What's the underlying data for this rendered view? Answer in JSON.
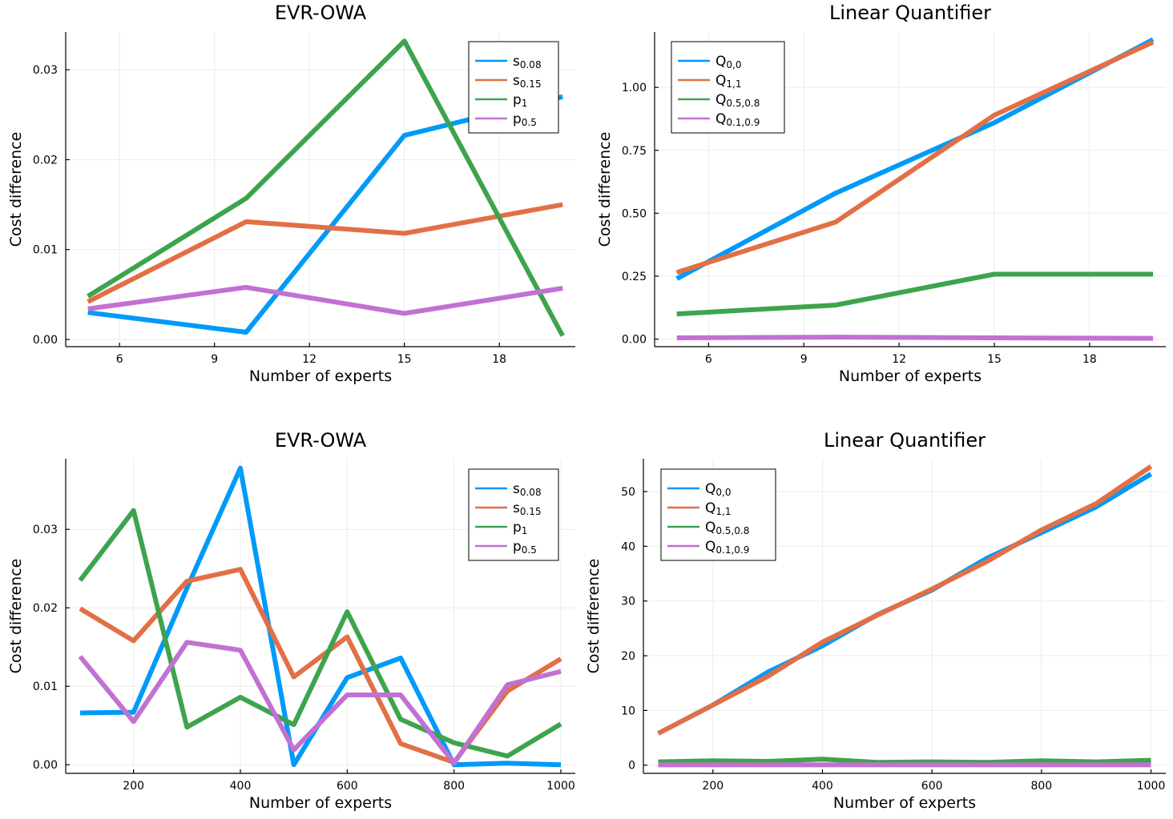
{
  "chart_data": [
    {
      "type": "line",
      "title": "EVR-OWA",
      "xlabel": "Number of experts",
      "ylabel": "Cost difference",
      "x": [
        5,
        10,
        15,
        20
      ],
      "xlim": [
        4.3,
        20.4
      ],
      "ylim": [
        -0.0008,
        0.0342
      ],
      "xticks": [
        6,
        9,
        12,
        15,
        18
      ],
      "xtick_labels": [
        "6",
        "9",
        "12",
        "15",
        "18"
      ],
      "yticks": [
        0,
        0.01,
        0.02,
        0.03
      ],
      "ytick_labels": [
        "0.00",
        "0.01",
        "0.02",
        "0.03"
      ],
      "grid": true,
      "legend_position": "top-right",
      "series": [
        {
          "name": "s0.08",
          "base": "s",
          "sub": "0.08",
          "color": "#009af9",
          "values": [
            0.003,
            0.0008,
            0.0227,
            0.027
          ]
        },
        {
          "name": "s0.15",
          "base": "s",
          "sub": "0.15",
          "color": "#e26f46",
          "values": [
            0.0042,
            0.0131,
            0.0118,
            0.015
          ]
        },
        {
          "name": "p1",
          "base": "p",
          "sub": "1",
          "color": "#3da44d",
          "values": [
            0.0048,
            0.0157,
            0.0332,
            0.0004
          ]
        },
        {
          "name": "p0.5",
          "base": "p",
          "sub": "0.5",
          "color": "#c271d2",
          "values": [
            0.0034,
            0.0058,
            0.0029,
            0.0057
          ]
        }
      ]
    },
    {
      "type": "line",
      "title": "Linear Quantifier",
      "xlabel": "Number of experts",
      "ylabel": "Cost difference",
      "x": [
        5,
        10,
        15,
        20
      ],
      "xlim": [
        4.3,
        20.4
      ],
      "ylim": [
        -0.03,
        1.22
      ],
      "xticks": [
        6,
        9,
        12,
        15,
        18
      ],
      "xtick_labels": [
        "6",
        "9",
        "12",
        "15",
        "18"
      ],
      "yticks": [
        0,
        0.25,
        0.5,
        0.75,
        1.0
      ],
      "ytick_labels": [
        "0.00",
        "0.25",
        "0.50",
        "0.75",
        "1.00"
      ],
      "grid": true,
      "legend_position": "top-left",
      "series": [
        {
          "name": "Q0,0",
          "base": "Q",
          "sub": "0,0",
          "color": "#009af9",
          "values": [
            0.24,
            0.58,
            0.86,
            1.19
          ]
        },
        {
          "name": "Q1,1",
          "base": "Q",
          "sub": "1,1",
          "color": "#e26f46",
          "values": [
            0.265,
            0.465,
            0.89,
            1.18
          ]
        },
        {
          "name": "Q0.5,0.8",
          "base": "Q",
          "sub": "0.5,0.8",
          "color": "#3da44d",
          "values": [
            0.1,
            0.135,
            0.258,
            0.258
          ]
        },
        {
          "name": "Q0.1,0.9",
          "base": "Q",
          "sub": "0.1,0.9",
          "color": "#c271d2",
          "values": [
            0.005,
            0.008,
            0.005,
            0.003
          ]
        }
      ]
    },
    {
      "type": "line",
      "title": "EVR-OWA",
      "xlabel": "Number of experts",
      "ylabel": "Cost difference",
      "x": [
        100,
        200,
        300,
        400,
        500,
        600,
        700,
        800,
        900,
        1000
      ],
      "xlim": [
        73,
        1027
      ],
      "ylim": [
        -0.0011,
        0.039
      ],
      "xticks": [
        200,
        400,
        600,
        800,
        1000
      ],
      "xtick_labels": [
        "200",
        "400",
        "600",
        "800",
        "1000"
      ],
      "yticks": [
        0,
        0.01,
        0.02,
        0.03
      ],
      "ytick_labels": [
        "0.00",
        "0.01",
        "0.02",
        "0.03"
      ],
      "grid": true,
      "legend_position": "top-right",
      "series": [
        {
          "name": "s0.08",
          "base": "s",
          "sub": "0.08",
          "color": "#009af9",
          "values": [
            0.0066,
            0.0067,
            0.0225,
            0.0378,
            0.0,
            0.0111,
            0.0136,
            0.0,
            0.0002,
            0.0
          ]
        },
        {
          "name": "s0.15",
          "base": "s",
          "sub": "0.15",
          "color": "#e26f46",
          "values": [
            0.0199,
            0.0158,
            0.0234,
            0.0249,
            0.0112,
            0.0163,
            0.0027,
            0.0003,
            0.0094,
            0.0135
          ]
        },
        {
          "name": "p1",
          "base": "p",
          "sub": "1",
          "color": "#3da44d",
          "values": [
            0.0235,
            0.0324,
            0.0048,
            0.0086,
            0.0051,
            0.0195,
            0.0058,
            0.0028,
            0.0011,
            0.0052
          ]
        },
        {
          "name": "p0.5",
          "base": "p",
          "sub": "0.5",
          "color": "#c271d2",
          "values": [
            0.0138,
            0.0055,
            0.0156,
            0.0146,
            0.0019,
            0.0089,
            0.0089,
            0.0002,
            0.0102,
            0.0119
          ]
        }
      ]
    },
    {
      "type": "line",
      "title": "Linear Quantifier",
      "xlabel": "Number of experts",
      "ylabel": "Cost difference",
      "x": [
        100,
        200,
        300,
        400,
        500,
        600,
        700,
        800,
        900,
        1000
      ],
      "xlim": [
        73,
        1027
      ],
      "ylim": [
        -1.5,
        56
      ],
      "xticks": [
        200,
        400,
        600,
        800,
        1000
      ],
      "xtick_labels": [
        "200",
        "400",
        "600",
        "800",
        "1000"
      ],
      "yticks": [
        0,
        10,
        20,
        30,
        40,
        50
      ],
      "ytick_labels": [
        "0",
        "10",
        "20",
        "30",
        "40",
        "50"
      ],
      "grid": true,
      "legend_position": "top-left",
      "series": [
        {
          "name": "Q0,0",
          "base": "Q",
          "sub": "0,0",
          "color": "#009af9",
          "values": [
            5.8,
            11.0,
            17.0,
            21.8,
            27.5,
            32.0,
            37.8,
            42.5,
            47.2,
            53.2
          ]
        },
        {
          "name": "Q1,1",
          "base": "Q",
          "sub": "1,1",
          "color": "#e26f46",
          "values": [
            5.8,
            11.0,
            16.2,
            22.5,
            27.4,
            32.2,
            37.2,
            43.0,
            47.8,
            54.6
          ]
        },
        {
          "name": "Q0.5,0.8",
          "base": "Q",
          "sub": "0.5,0.8",
          "color": "#3da44d",
          "values": [
            0.6,
            0.8,
            0.7,
            1.1,
            0.5,
            0.6,
            0.5,
            0.8,
            0.6,
            0.9
          ]
        },
        {
          "name": "Q0.1,0.9",
          "base": "Q",
          "sub": "0.1,0.9",
          "color": "#c271d2",
          "values": [
            0.05,
            0.05,
            0.05,
            0.05,
            0.05,
            0.05,
            0.05,
            0.05,
            0.05,
            0.05
          ]
        }
      ]
    }
  ]
}
